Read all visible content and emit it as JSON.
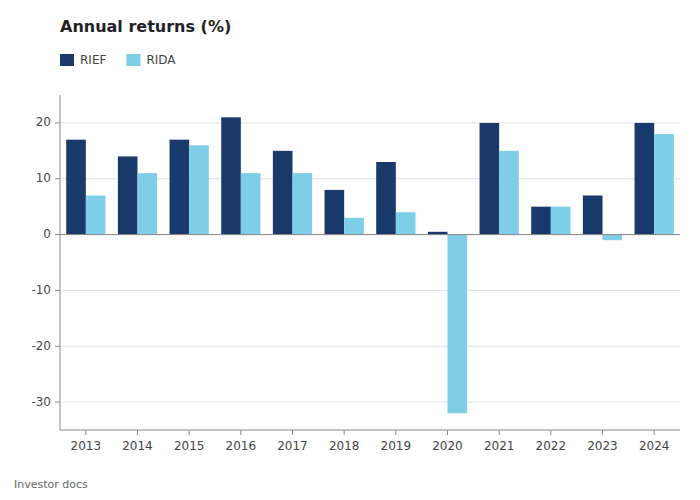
{
  "chart_data": {
    "type": "bar",
    "title": "Annual returns (%)",
    "annotations": [
      "Investor docs"
    ],
    "categories": [
      "2013",
      "2014",
      "2015",
      "2016",
      "2017",
      "2018",
      "2019",
      "2020",
      "2021",
      "2022",
      "2023",
      "2024"
    ],
    "series": [
      {
        "name": "RIEF",
        "color": "#1a3a6b",
        "values": [
          17,
          14,
          17,
          21,
          15,
          8,
          13,
          0.5,
          20,
          5,
          7,
          20
        ]
      },
      {
        "name": "RIDA",
        "color": "#7ecee8",
        "values": [
          7,
          11,
          16,
          11,
          11,
          3,
          4,
          -32,
          15,
          5,
          -1,
          18
        ]
      }
    ],
    "ylim": [
      -35,
      25
    ],
    "yticks": [
      -30,
      -20,
      -10,
      0,
      10,
      20
    ],
    "grid": true,
    "legend": "upper left"
  }
}
